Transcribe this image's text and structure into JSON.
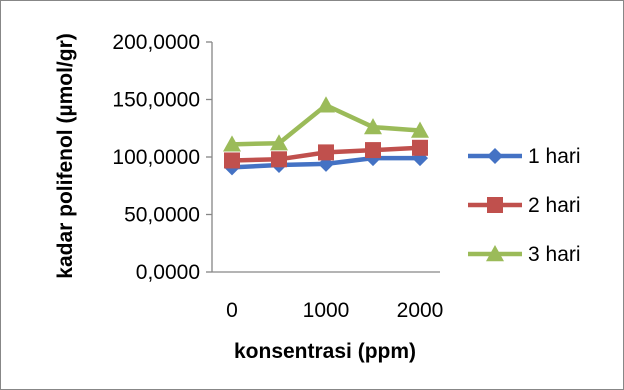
{
  "chart_data": {
    "type": "line",
    "title": "",
    "xlabel": "konsentrasi (ppm)",
    "ylabel": "kadar polifenol (µmol/gr)",
    "ylim": [
      0,
      200
    ],
    "y_ticks": [
      "0,0000",
      "50,0000",
      "100,0000",
      "150,0000",
      "200,0000"
    ],
    "x_ticks": [
      "0",
      "1000",
      "2000"
    ],
    "x": [
      0,
      500,
      1000,
      1500,
      2000
    ],
    "grid": false,
    "legend_position": "right",
    "series": [
      {
        "name": "1 hari",
        "values": [
          91,
          93,
          94,
          99,
          99
        ],
        "color": "#4472C4",
        "marker": "diamond"
      },
      {
        "name": "2 hari",
        "values": [
          97,
          98,
          104,
          106,
          108
        ],
        "color": "#C0504D",
        "marker": "square"
      },
      {
        "name": "3 hari",
        "values": [
          111,
          112,
          145,
          126,
          123
        ],
        "color": "#9BBB59",
        "marker": "triangle"
      }
    ]
  }
}
